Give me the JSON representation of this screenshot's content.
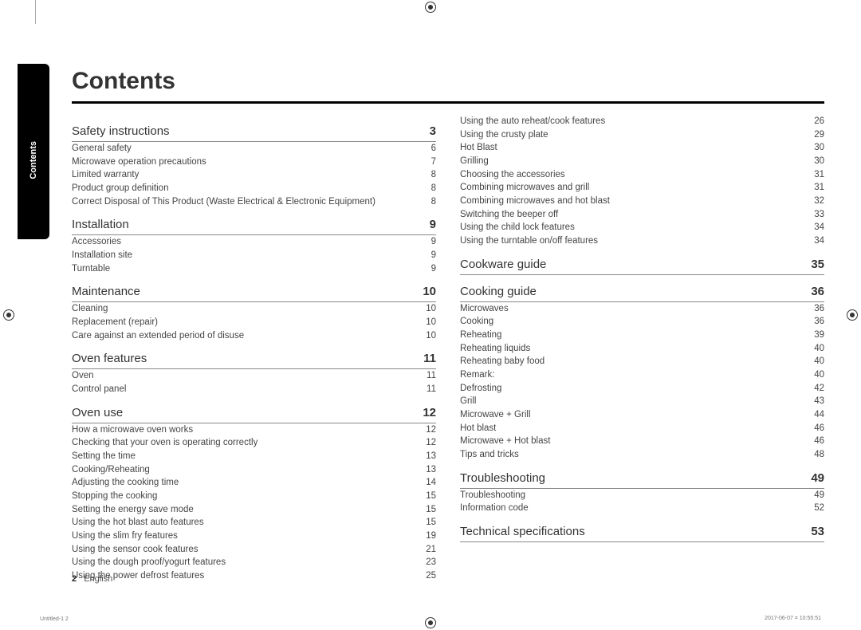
{
  "tab_label": "Contents",
  "title": "Contents",
  "left_column": [
    {
      "heading": "Safety instructions",
      "page": "3",
      "entries": [
        {
          "label": "General safety",
          "page": "6"
        },
        {
          "label": "Microwave operation precautions",
          "page": "7"
        },
        {
          "label": "Limited warranty",
          "page": "8"
        },
        {
          "label": "Product group definition",
          "page": "8"
        },
        {
          "label": "Correct Disposal of This Product (Waste Electrical & Electronic Equipment)",
          "page": "8"
        }
      ]
    },
    {
      "heading": "Installation",
      "page": "9",
      "entries": [
        {
          "label": "Accessories",
          "page": "9"
        },
        {
          "label": "Installation site",
          "page": "9"
        },
        {
          "label": "Turntable",
          "page": "9"
        }
      ]
    },
    {
      "heading": "Maintenance",
      "page": "10",
      "entries": [
        {
          "label": "Cleaning",
          "page": "10"
        },
        {
          "label": "Replacement (repair)",
          "page": "10"
        },
        {
          "label": "Care against an extended period of disuse",
          "page": "10"
        }
      ]
    },
    {
      "heading": "Oven features",
      "page": "11",
      "entries": [
        {
          "label": "Oven",
          "page": "11"
        },
        {
          "label": "Control panel",
          "page": "11"
        }
      ]
    },
    {
      "heading": "Oven use",
      "page": "12",
      "entries": [
        {
          "label": "How a microwave oven works",
          "page": "12"
        },
        {
          "label": "Checking that your oven is operating correctly",
          "page": "12"
        },
        {
          "label": "Setting the time",
          "page": "13"
        },
        {
          "label": "Cooking/Reheating",
          "page": "13"
        },
        {
          "label": "Adjusting the cooking time",
          "page": "14"
        },
        {
          "label": "Stopping the cooking",
          "page": "15"
        },
        {
          "label": "Setting the energy save mode",
          "page": "15"
        },
        {
          "label": "Using the hot blast auto features",
          "page": "15"
        },
        {
          "label": "Using the slim fry features",
          "page": "19"
        },
        {
          "label": "Using the sensor cook features",
          "page": "21"
        },
        {
          "label": "Using the dough proof/yogurt features",
          "page": "23"
        },
        {
          "label": "Using the power defrost features",
          "page": "25"
        }
      ]
    }
  ],
  "right_column": [
    {
      "entries": [
        {
          "label": "Using the auto reheat/cook features",
          "page": "26"
        },
        {
          "label": "Using the crusty plate",
          "page": "29"
        },
        {
          "label": "Hot Blast",
          "page": "30"
        },
        {
          "label": "Grilling",
          "page": "30"
        },
        {
          "label": "Choosing the accessories",
          "page": "31"
        },
        {
          "label": "Combining microwaves and grill",
          "page": "31"
        },
        {
          "label": "Combining microwaves and hot blast",
          "page": "32"
        },
        {
          "label": "Switching the beeper off",
          "page": "33"
        },
        {
          "label": "Using the child lock features",
          "page": "34"
        },
        {
          "label": "Using the turntable on/off features",
          "page": "34"
        }
      ]
    },
    {
      "heading": "Cookware guide",
      "page": "35",
      "entries": []
    },
    {
      "heading": "Cooking guide",
      "page": "36",
      "entries": [
        {
          "label": "Microwaves",
          "page": "36"
        },
        {
          "label": "Cooking",
          "page": "36"
        },
        {
          "label": "Reheating",
          "page": "39"
        },
        {
          "label": "Reheating liquids",
          "page": "40"
        },
        {
          "label": "Reheating baby food",
          "page": "40"
        },
        {
          "label": "Remark:",
          "page": "40"
        },
        {
          "label": "Defrosting",
          "page": "42"
        },
        {
          "label": "Grill",
          "page": "43"
        },
        {
          "label": "Microwave + Grill",
          "page": "44"
        },
        {
          "label": "Hot blast",
          "page": "46"
        },
        {
          "label": "Microwave + Hot blast",
          "page": "46"
        },
        {
          "label": "Tips and tricks",
          "page": "48"
        }
      ]
    },
    {
      "heading": "Troubleshooting",
      "page": "49",
      "entries": [
        {
          "label": "Troubleshooting",
          "page": "49"
        },
        {
          "label": "Information code",
          "page": "52"
        }
      ]
    },
    {
      "heading": "Technical specifications",
      "page": "53",
      "entries": []
    }
  ],
  "footer_page": "2",
  "footer_lang": "English",
  "footnote_left": "Untitled-1   2",
  "footnote_right": "2017-06-07   ⌗ 10:55:51"
}
